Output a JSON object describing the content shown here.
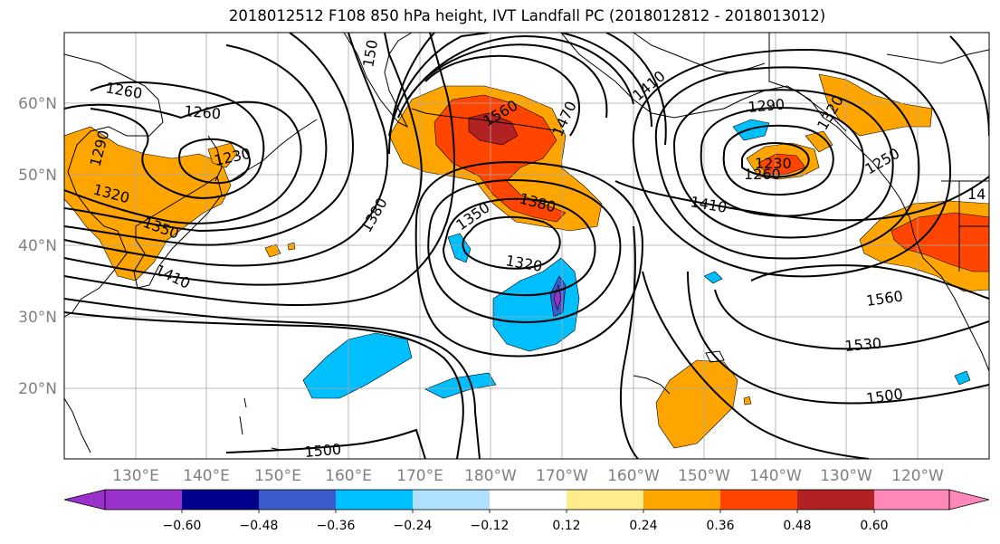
{
  "title": "2018012512 F108 850 hPa height, IVT Landfall PC (2018012812 - 2018013012)",
  "map": {
    "lon_labels": [
      "130°E",
      "140°E",
      "150°E",
      "160°E",
      "170°E",
      "180°W",
      "170°W",
      "160°W",
      "150°W",
      "140°W",
      "130°W",
      "120°W"
    ],
    "lat_labels": [
      "60°N",
      "50°N",
      "40°N",
      "30°N",
      "20°N"
    ],
    "contour_labels": [
      "1260",
      "1260",
      "1230",
      "1290",
      "1320",
      "1350",
      "1410",
      "150",
      "1560",
      "1470",
      "1410",
      "1290",
      "1320",
      "1250",
      "1260",
      "1230",
      "1380",
      "1380",
      "1350",
      "1320",
      "1410",
      "1560",
      "1530",
      "1500",
      "1500",
      "14"
    ]
  },
  "colorbar": {
    "tick_labels": [
      "−0.60",
      "−0.48",
      "−0.36",
      "−0.24",
      "−0.12",
      "0.12",
      "0.24",
      "0.36",
      "0.48",
      "0.60"
    ],
    "colors": [
      "#9932cc",
      "#00008b",
      "#3a5bcc",
      "#00bfff",
      "#b0e0ff",
      "#ffffff",
      "#ffec8b",
      "#ffa500",
      "#ff4500",
      "#b22222",
      "#ff88b8"
    ]
  }
}
